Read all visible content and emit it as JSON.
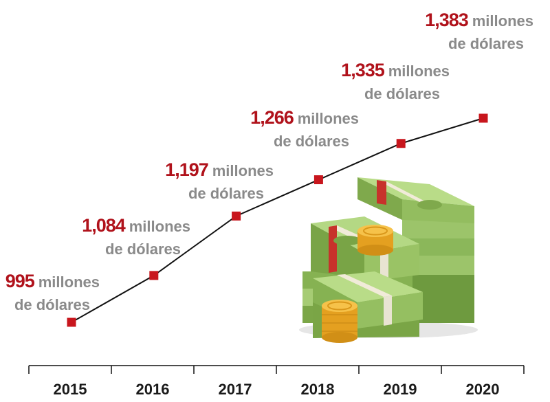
{
  "chart_data": {
    "type": "line",
    "categories": [
      "2015",
      "2016",
      "2017",
      "2018",
      "2019",
      "2020"
    ],
    "values": [
      995,
      1084,
      1197,
      1266,
      1335,
      1383
    ],
    "value_labels": [
      "995",
      "1,084",
      "1,197",
      "1,266",
      "1,335",
      "1,383"
    ],
    "unit_line1": "millones",
    "unit_line2": "de dólares",
    "title": "",
    "xlabel": "",
    "ylabel": "",
    "grid": false,
    "colors": {
      "line": "#111111",
      "marker": "#c8161d",
      "value": "#b0121b",
      "unit": "#8a8a8a"
    }
  },
  "illustration": {
    "icon": "money-stack-coins-icon"
  }
}
